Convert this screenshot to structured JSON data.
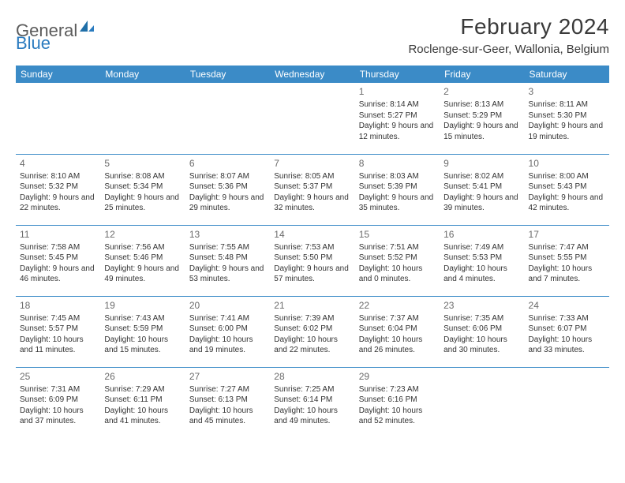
{
  "logo": {
    "general": "General",
    "blue": "Blue"
  },
  "title": "February 2024",
  "subtitle": "Roclenge-sur-Geer, Wallonia, Belgium",
  "header_bg": "#3b8bc7",
  "header_fg": "#ffffff",
  "border_color": "#3b8bc7",
  "daynum_color": "#6b6b6b",
  "text_color": "#333333",
  "day_headers": [
    "Sunday",
    "Monday",
    "Tuesday",
    "Wednesday",
    "Thursday",
    "Friday",
    "Saturday"
  ],
  "weeks": [
    [
      null,
      null,
      null,
      null,
      {
        "n": "1",
        "sr": "8:14 AM",
        "ss": "5:27 PM",
        "dl": "9 hours and 12 minutes."
      },
      {
        "n": "2",
        "sr": "8:13 AM",
        "ss": "5:29 PM",
        "dl": "9 hours and 15 minutes."
      },
      {
        "n": "3",
        "sr": "8:11 AM",
        "ss": "5:30 PM",
        "dl": "9 hours and 19 minutes."
      }
    ],
    [
      {
        "n": "4",
        "sr": "8:10 AM",
        "ss": "5:32 PM",
        "dl": "9 hours and 22 minutes."
      },
      {
        "n": "5",
        "sr": "8:08 AM",
        "ss": "5:34 PM",
        "dl": "9 hours and 25 minutes."
      },
      {
        "n": "6",
        "sr": "8:07 AM",
        "ss": "5:36 PM",
        "dl": "9 hours and 29 minutes."
      },
      {
        "n": "7",
        "sr": "8:05 AM",
        "ss": "5:37 PM",
        "dl": "9 hours and 32 minutes."
      },
      {
        "n": "8",
        "sr": "8:03 AM",
        "ss": "5:39 PM",
        "dl": "9 hours and 35 minutes."
      },
      {
        "n": "9",
        "sr": "8:02 AM",
        "ss": "5:41 PM",
        "dl": "9 hours and 39 minutes."
      },
      {
        "n": "10",
        "sr": "8:00 AM",
        "ss": "5:43 PM",
        "dl": "9 hours and 42 minutes."
      }
    ],
    [
      {
        "n": "11",
        "sr": "7:58 AM",
        "ss": "5:45 PM",
        "dl": "9 hours and 46 minutes."
      },
      {
        "n": "12",
        "sr": "7:56 AM",
        "ss": "5:46 PM",
        "dl": "9 hours and 49 minutes."
      },
      {
        "n": "13",
        "sr": "7:55 AM",
        "ss": "5:48 PM",
        "dl": "9 hours and 53 minutes."
      },
      {
        "n": "14",
        "sr": "7:53 AM",
        "ss": "5:50 PM",
        "dl": "9 hours and 57 minutes."
      },
      {
        "n": "15",
        "sr": "7:51 AM",
        "ss": "5:52 PM",
        "dl": "10 hours and 0 minutes."
      },
      {
        "n": "16",
        "sr": "7:49 AM",
        "ss": "5:53 PM",
        "dl": "10 hours and 4 minutes."
      },
      {
        "n": "17",
        "sr": "7:47 AM",
        "ss": "5:55 PM",
        "dl": "10 hours and 7 minutes."
      }
    ],
    [
      {
        "n": "18",
        "sr": "7:45 AM",
        "ss": "5:57 PM",
        "dl": "10 hours and 11 minutes."
      },
      {
        "n": "19",
        "sr": "7:43 AM",
        "ss": "5:59 PM",
        "dl": "10 hours and 15 minutes."
      },
      {
        "n": "20",
        "sr": "7:41 AM",
        "ss": "6:00 PM",
        "dl": "10 hours and 19 minutes."
      },
      {
        "n": "21",
        "sr": "7:39 AM",
        "ss": "6:02 PM",
        "dl": "10 hours and 22 minutes."
      },
      {
        "n": "22",
        "sr": "7:37 AM",
        "ss": "6:04 PM",
        "dl": "10 hours and 26 minutes."
      },
      {
        "n": "23",
        "sr": "7:35 AM",
        "ss": "6:06 PM",
        "dl": "10 hours and 30 minutes."
      },
      {
        "n": "24",
        "sr": "7:33 AM",
        "ss": "6:07 PM",
        "dl": "10 hours and 33 minutes."
      }
    ],
    [
      {
        "n": "25",
        "sr": "7:31 AM",
        "ss": "6:09 PM",
        "dl": "10 hours and 37 minutes."
      },
      {
        "n": "26",
        "sr": "7:29 AM",
        "ss": "6:11 PM",
        "dl": "10 hours and 41 minutes."
      },
      {
        "n": "27",
        "sr": "7:27 AM",
        "ss": "6:13 PM",
        "dl": "10 hours and 45 minutes."
      },
      {
        "n": "28",
        "sr": "7:25 AM",
        "ss": "6:14 PM",
        "dl": "10 hours and 49 minutes."
      },
      {
        "n": "29",
        "sr": "7:23 AM",
        "ss": "6:16 PM",
        "dl": "10 hours and 52 minutes."
      },
      null,
      null
    ]
  ],
  "labels": {
    "sunrise": "Sunrise: ",
    "sunset": "Sunset: ",
    "daylight": "Daylight: "
  }
}
